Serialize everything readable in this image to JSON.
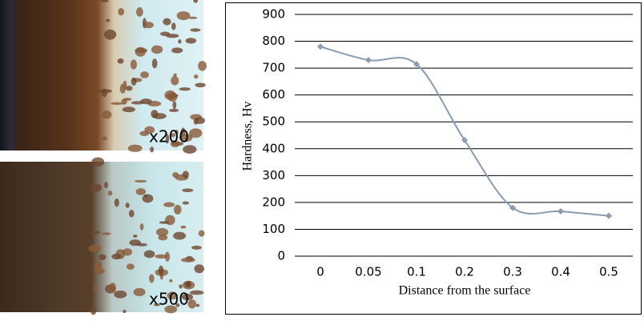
{
  "images": [
    {
      "label": "x200"
    },
    {
      "label": "x500"
    }
  ],
  "chart_data": {
    "type": "line",
    "x_label": "Distance from the surface",
    "y_label": "Hardness, Hv",
    "categories": [
      "0",
      "0.05",
      "0.1",
      "0.2",
      "0.3",
      "0.4",
      "0.5"
    ],
    "values": [
      780,
      730,
      715,
      432,
      180,
      167,
      150
    ],
    "color": "#8a9bb4",
    "smooth": true,
    "marker": "diamond",
    "ylim": [
      0,
      900
    ],
    "yticks": [
      0,
      100,
      200,
      300,
      400,
      500,
      600,
      700,
      800,
      900
    ],
    "grid": true
  }
}
